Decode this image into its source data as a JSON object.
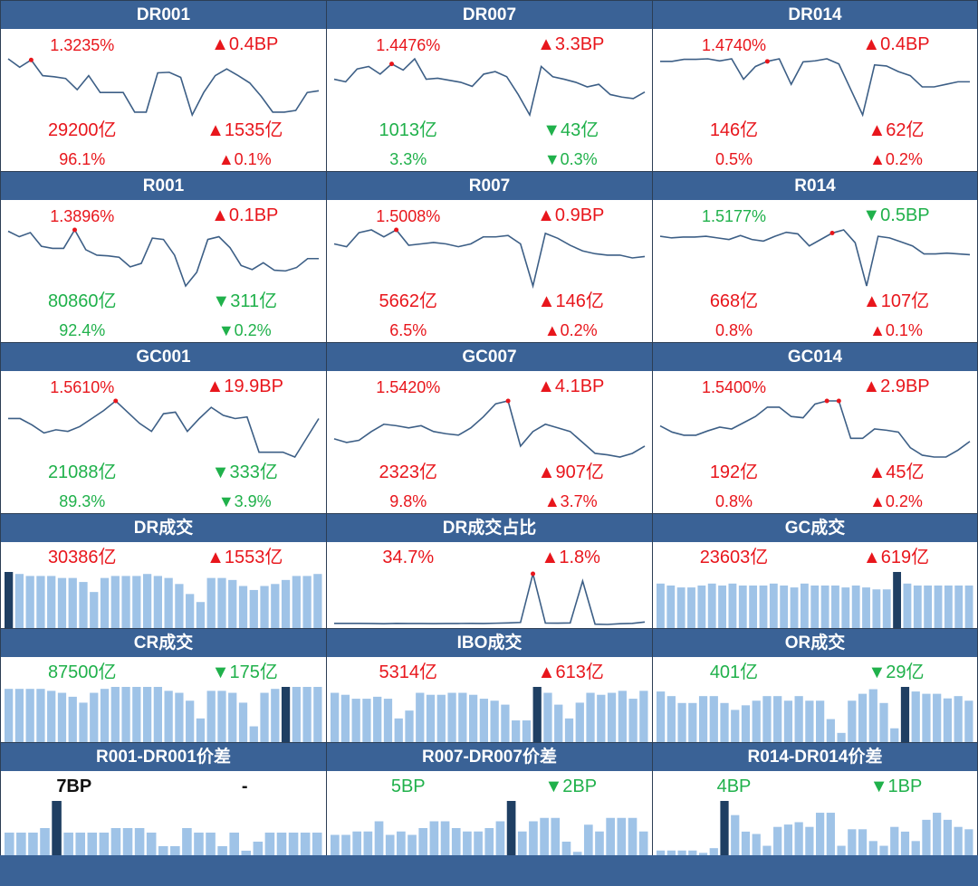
{
  "colors": {
    "up": "#e8161c",
    "down": "#20b14b",
    "header": "#3a6296",
    "line": "#3d5f86",
    "bar": "#9fc3e7",
    "bar_hl": "#1f3f63"
  },
  "rows": [
    [
      {
        "title": "DR001",
        "rate": "1.3235%",
        "rate_chg": "▲0.4BP",
        "rate_dir": "up",
        "vol": "29200亿",
        "vol_chg": "▲1535亿",
        "vol_dir": "up",
        "vol_dir_l": "up",
        "pct": "96.1%",
        "pct_chg": "▲0.1%",
        "pct_dir_l": "up",
        "pct_dir": "up",
        "spark": [
          1.36,
          1.345,
          1.358,
          1.33,
          1.328,
          1.325,
          1.305,
          1.33,
          1.3,
          1.3,
          1.3,
          1.265,
          1.265,
          1.335,
          1.336,
          1.327,
          1.26,
          1.3,
          1.33,
          1.342,
          1.33,
          1.317,
          1.293,
          1.265,
          1.265,
          1.268,
          1.3,
          1.303
        ],
        "hl": [
          2
        ]
      },
      {
        "title": "DR007",
        "rate": "1.4476%",
        "rate_chg": "▲3.3BP",
        "rate_dir": "up",
        "vol": "1013亿",
        "vol_chg": "▼43亿",
        "vol_dir_l": "down",
        "vol_dir": "down",
        "pct": "3.3%",
        "pct_chg": "▼0.3%",
        "pct_dir_l": "down",
        "pct_dir": "down",
        "spark": [
          1.43,
          1.425,
          1.45,
          1.455,
          1.44,
          1.46,
          1.448,
          1.47,
          1.43,
          1.432,
          1.428,
          1.424,
          1.416,
          1.44,
          1.445,
          1.435,
          1.4,
          1.36,
          1.455,
          1.435,
          1.43,
          1.424,
          1.415,
          1.42,
          1.4,
          1.395,
          1.392,
          1.405
        ],
        "hl": [
          5
        ]
      },
      {
        "title": "DR014",
        "rate": "1.4740%",
        "rate_chg": "▲0.4BP",
        "rate_dir": "up",
        "vol": "146亿",
        "vol_chg": "▲62亿",
        "vol_dir_l": "up",
        "vol_dir": "up",
        "pct": "0.5%",
        "pct_chg": "▲0.2%",
        "pct_dir_l": "up",
        "pct_dir": "up",
        "spark": [
          1.475,
          1.475,
          1.479,
          1.479,
          1.48,
          1.476,
          1.48,
          1.44,
          1.465,
          1.475,
          1.48,
          1.43,
          1.474,
          1.476,
          1.48,
          1.47,
          1.42,
          1.37,
          1.468,
          1.466,
          1.455,
          1.447,
          1.425,
          1.425,
          1.43,
          1.435,
          1.435
        ],
        "hl": [
          9
        ]
      }
    ],
    [
      {
        "title": "R001",
        "rate": "1.3896%",
        "rate_chg": "▲0.1BP",
        "rate_dir": "up",
        "vol": "80860亿",
        "vol_chg": "▼311亿",
        "vol_dir_l": "down",
        "vol_dir": "down",
        "pct": "92.4%",
        "pct_chg": "▼0.2%",
        "pct_dir_l": "down",
        "pct_dir": "down",
        "spark": [
          1.39,
          1.382,
          1.388,
          1.368,
          1.365,
          1.365,
          1.392,
          1.363,
          1.355,
          1.354,
          1.352,
          1.338,
          1.343,
          1.38,
          1.378,
          1.355,
          1.31,
          1.33,
          1.378,
          1.382,
          1.366,
          1.34,
          1.334,
          1.344,
          1.333,
          1.332,
          1.337,
          1.35,
          1.35
        ],
        "hl": [
          6
        ]
      },
      {
        "title": "R007",
        "rate": "1.5008%",
        "rate_chg": "▲0.9BP",
        "rate_dir": "up",
        "vol": "5662亿",
        "vol_chg": "▲146亿",
        "vol_dir_l": "up",
        "vol_dir": "up",
        "pct": "6.5%",
        "pct_chg": "▲0.2%",
        "pct_dir_l": "up",
        "pct_dir": "up",
        "spark": [
          1.48,
          1.476,
          1.496,
          1.5,
          1.49,
          1.5,
          1.478,
          1.48,
          1.482,
          1.48,
          1.476,
          1.48,
          1.49,
          1.49,
          1.492,
          1.48,
          1.42,
          1.495,
          1.488,
          1.478,
          1.47,
          1.466,
          1.464,
          1.464,
          1.46,
          1.462
        ],
        "hl": [
          5
        ]
      },
      {
        "title": "R014",
        "rate": "1.5177%",
        "rate_chg": "▼0.5BP",
        "rate_dir": "down",
        "vol": "668亿",
        "vol_chg": "▲107亿",
        "vol_dir_l": "up",
        "vol_dir": "up",
        "pct": "0.8%",
        "pct_chg": "▲0.1%",
        "pct_dir_l": "up",
        "pct_dir": "up",
        "spark": [
          1.532,
          1.53,
          1.531,
          1.531,
          1.532,
          1.53,
          1.528,
          1.533,
          1.528,
          1.526,
          1.532,
          1.537,
          1.535,
          1.52,
          1.528,
          1.536,
          1.54,
          1.524,
          1.47,
          1.532,
          1.53,
          1.525,
          1.52,
          1.51,
          1.51,
          1.511,
          1.51,
          1.509
        ],
        "hl": [
          15
        ]
      }
    ],
    [
      {
        "title": "GC001",
        "rate": "1.5610%",
        "rate_chg": "▲19.9BP",
        "rate_dir": "up",
        "vol": "21088亿",
        "vol_chg": "▼333亿",
        "vol_dir_l": "down",
        "vol_dir": "down",
        "pct": "89.3%",
        "pct_chg": "▼3.9%",
        "pct_dir_l": "down",
        "pct_dir": "down",
        "spark": [
          1.51,
          1.51,
          1.49,
          1.465,
          1.475,
          1.47,
          1.485,
          1.51,
          1.535,
          1.565,
          1.53,
          1.495,
          1.47,
          1.525,
          1.53,
          1.47,
          1.51,
          1.545,
          1.52,
          1.51,
          1.515,
          1.405,
          1.405,
          1.405,
          1.39,
          1.45,
          1.51
        ],
        "hl": [
          9
        ]
      },
      {
        "title": "GC007",
        "rate": "1.5420%",
        "rate_chg": "▲4.1BP",
        "rate_dir": "up",
        "vol": "2323亿",
        "vol_chg": "▲907亿",
        "vol_dir_l": "up",
        "vol_dir": "up",
        "pct": "9.8%",
        "pct_chg": "▲3.7%",
        "pct_dir_l": "up",
        "pct_dir": "up",
        "spark": [
          1.49,
          1.485,
          1.488,
          1.5,
          1.51,
          1.508,
          1.505,
          1.508,
          1.5,
          1.497,
          1.495,
          1.505,
          1.52,
          1.538,
          1.542,
          1.48,
          1.5,
          1.51,
          1.505,
          1.5,
          1.485,
          1.47,
          1.468,
          1.465,
          1.47,
          1.48
        ],
        "hl": [
          14
        ]
      },
      {
        "title": "GC014",
        "rate": "1.5400%",
        "rate_chg": "▲2.9BP",
        "rate_dir": "up",
        "vol": "192亿",
        "vol_chg": "▲45亿",
        "vol_dir_l": "up",
        "vol_dir": "up",
        "pct": "0.8%",
        "pct_chg": "▲0.2%",
        "pct_dir_l": "up",
        "pct_dir": "up",
        "spark": [
          1.505,
          1.495,
          1.49,
          1.49,
          1.497,
          1.503,
          1.5,
          1.51,
          1.52,
          1.535,
          1.535,
          1.52,
          1.518,
          1.54,
          1.545,
          1.545,
          1.485,
          1.485,
          1.5,
          1.498,
          1.495,
          1.47,
          1.458,
          1.455,
          1.455,
          1.466,
          1.48
        ],
        "hl": [
          14,
          15
        ]
      }
    ]
  ],
  "vol_rows": [
    [
      {
        "title": "DR成交",
        "val": "30386亿",
        "chg": "▲1553亿",
        "val_dir": "up",
        "chg_dir": "up",
        "bars": [
          28,
          27,
          26,
          26,
          26,
          25,
          25,
          23,
          18,
          25,
          26,
          26,
          26,
          27,
          26,
          25,
          22,
          17,
          13,
          25,
          25,
          24,
          21,
          19,
          21,
          22,
          24,
          26,
          26,
          27
        ],
        "hl": [
          0
        ]
      },
      {
        "title": "DR成交占比",
        "val": "34.7%",
        "chg": "▲1.8%",
        "val_dir": "up",
        "chg_dir": "up",
        "spark": [
          2.6,
          2.6,
          2.6,
          2.55,
          2.4,
          2.6,
          2.5,
          2.55,
          2.45,
          2.5,
          2.55,
          2.6,
          2.55,
          2.7,
          2.9,
          3.2,
          34.7,
          2.8,
          2.75,
          2.9,
          30,
          2.1,
          1.9,
          2.4,
          2.6,
          3.5
        ],
        "hl": [
          16
        ]
      },
      {
        "title": "GC成交",
        "val": "23603亿",
        "chg": "▲619亿",
        "val_dir": "up",
        "chg_dir": "up",
        "bars": [
          23,
          22,
          21,
          21,
          22,
          23,
          22,
          23,
          22,
          22,
          22,
          23,
          22,
          21,
          23,
          22,
          22,
          22,
          21,
          22,
          21,
          20,
          20,
          29,
          23,
          22,
          22,
          22,
          22,
          22,
          22
        ],
        "hl": [
          23
        ]
      }
    ],
    [
      {
        "title": "CR成交",
        "val": "87500亿",
        "chg": "▼175亿",
        "val_dir": "down",
        "chg_dir": "down",
        "bars": [
          27,
          27,
          27,
          27,
          26,
          25,
          23,
          20,
          25,
          27,
          28,
          28,
          28,
          28,
          28,
          26,
          25,
          21,
          12,
          26,
          26,
          25,
          20,
          8,
          25,
          27,
          28,
          28,
          28,
          28
        ],
        "hl": [
          26
        ]
      },
      {
        "title": "IBO成交",
        "val": "5314亿",
        "chg": "▲613亿",
        "val_dir": "up",
        "chg_dir": "up",
        "bars": [
          25,
          24,
          22,
          22,
          23,
          22,
          12,
          16,
          25,
          24,
          24,
          25,
          25,
          24,
          22,
          21,
          19,
          11,
          11,
          28,
          25,
          19,
          12,
          20,
          25,
          24,
          25,
          26,
          22,
          26
        ],
        "hl": [
          19
        ]
      },
      {
        "title": "OR成交",
        "val": "401亿",
        "chg": "▼29亿",
        "val_dir": "down",
        "chg_dir": "down",
        "bars": [
          22,
          20,
          17,
          17,
          20,
          20,
          17,
          14,
          16,
          18,
          20,
          20,
          18,
          20,
          18,
          18,
          10,
          4,
          18,
          21,
          23,
          17,
          6,
          24,
          22,
          21,
          21,
          19,
          20,
          18
        ],
        "hl": [
          23
        ]
      }
    ],
    [
      {
        "title": "R001-DR001价差",
        "val": "7BP",
        "chg": "-",
        "val_dir": "black",
        "chg_dir": "black",
        "bars": [
          5,
          5,
          5,
          6,
          12,
          5,
          5,
          5,
          5,
          6,
          6,
          6,
          5,
          2,
          2,
          6,
          5,
          5,
          2,
          5,
          1,
          3,
          5,
          5,
          5,
          5,
          5
        ],
        "hl": [
          4
        ]
      },
      {
        "title": "R007-DR007价差",
        "val": "5BP",
        "chg": "▼2BP",
        "val_dir": "down",
        "chg_dir": "down",
        "bars": [
          6,
          6,
          7,
          7,
          10,
          6,
          7,
          6,
          8,
          10,
          10,
          8,
          7,
          7,
          8,
          10,
          16,
          7,
          10,
          11,
          11,
          4,
          1,
          9,
          7,
          11,
          11,
          11,
          7
        ],
        "hl": [
          16
        ]
      },
      {
        "title": "R014-DR014价差",
        "val": "4BP",
        "chg": "▼1BP",
        "val_dir": "down",
        "chg_dir": "down",
        "bars": [
          2,
          2,
          2,
          2,
          1,
          3,
          23,
          17,
          10,
          9,
          4,
          12,
          13,
          14,
          12,
          18,
          18,
          4,
          11,
          11,
          6,
          4,
          12,
          10,
          6,
          15,
          18,
          15,
          12,
          11
        ],
        "hl": [
          6
        ]
      }
    ]
  ]
}
